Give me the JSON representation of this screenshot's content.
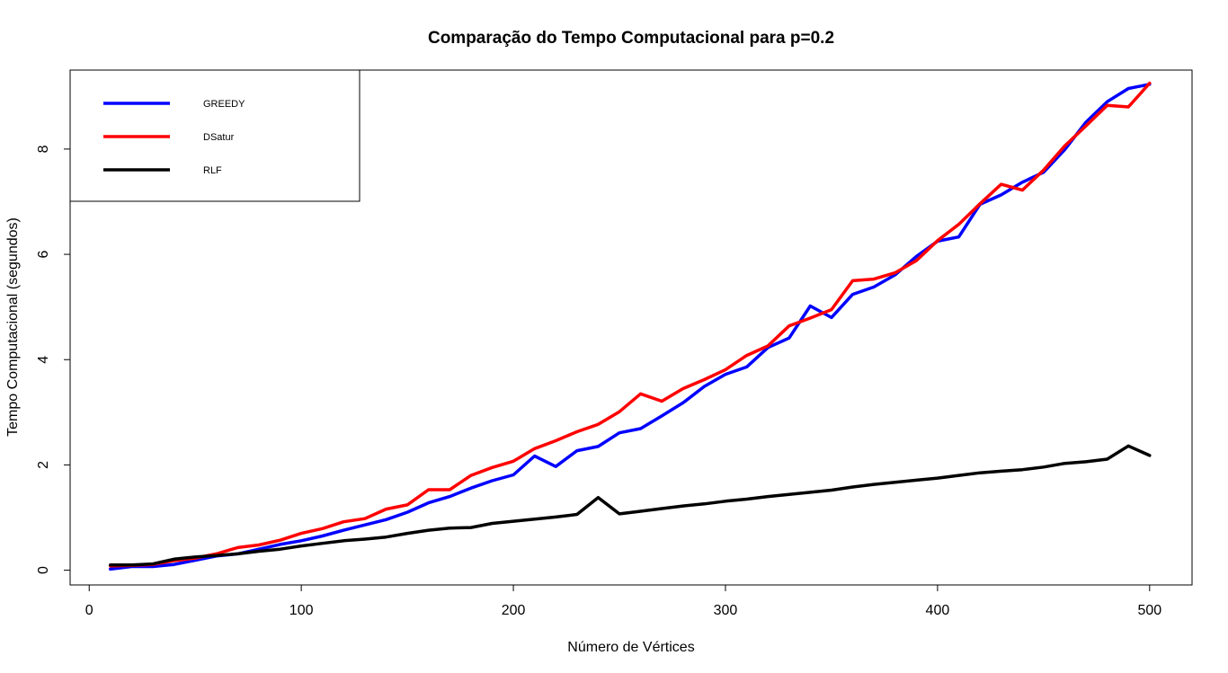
{
  "chart_data": {
    "type": "line",
    "title": "Comparação do Tempo Computacional para p=0.2",
    "xlabel": "Número de Vértices",
    "ylabel": "Tempo Computacional (segundos)",
    "xlim": [
      -9,
      520
    ],
    "ylim": [
      -0.28,
      9.5
    ],
    "xticks": [
      0,
      100,
      200,
      300,
      400,
      500
    ],
    "yticks": [
      0,
      2,
      4,
      6,
      8
    ],
    "legend_position": "top-left",
    "grid": false,
    "x": [
      10,
      20,
      30,
      40,
      50,
      60,
      70,
      80,
      90,
      100,
      110,
      120,
      130,
      140,
      150,
      160,
      170,
      180,
      190,
      200,
      210,
      220,
      230,
      240,
      250,
      260,
      270,
      280,
      290,
      300,
      310,
      320,
      330,
      340,
      350,
      360,
      370,
      380,
      390,
      400,
      410,
      420,
      430,
      440,
      450,
      460,
      470,
      480,
      490,
      500
    ],
    "series": [
      {
        "name": "GREEDY",
        "color": "#0000ff",
        "values": [
          0.02,
          0.07,
          0.07,
          0.11,
          0.19,
          0.27,
          0.31,
          0.4,
          0.49,
          0.56,
          0.65,
          0.76,
          0.86,
          0.96,
          1.1,
          1.28,
          1.4,
          1.56,
          1.7,
          1.81,
          2.17,
          1.97,
          2.27,
          2.35,
          2.61,
          2.69,
          2.93,
          3.18,
          3.49,
          3.72,
          3.86,
          4.23,
          4.41,
          5.02,
          4.8,
          5.24,
          5.38,
          5.61,
          5.96,
          6.25,
          6.33,
          6.95,
          7.13,
          7.37,
          7.56,
          7.99,
          8.51,
          8.9,
          9.15,
          9.23
        ]
      },
      {
        "name": "DSatur",
        "color": "#ff0000",
        "values": [
          0.08,
          0.09,
          0.11,
          0.18,
          0.23,
          0.31,
          0.43,
          0.48,
          0.57,
          0.7,
          0.79,
          0.92,
          0.98,
          1.16,
          1.24,
          1.53,
          1.53,
          1.8,
          1.95,
          2.07,
          2.31,
          2.46,
          2.63,
          2.77,
          3.01,
          3.35,
          3.21,
          3.45,
          3.62,
          3.81,
          4.08,
          4.26,
          4.64,
          4.79,
          4.95,
          5.5,
          5.53,
          5.65,
          5.88,
          6.26,
          6.57,
          6.96,
          7.33,
          7.22,
          7.6,
          8.06,
          8.44,
          8.83,
          8.8,
          9.25
        ]
      },
      {
        "name": "RLF",
        "color": "#000000",
        "values": [
          0.1,
          0.1,
          0.12,
          0.21,
          0.25,
          0.28,
          0.31,
          0.36,
          0.4,
          0.46,
          0.51,
          0.56,
          0.59,
          0.63,
          0.7,
          0.76,
          0.8,
          0.81,
          0.89,
          0.93,
          0.97,
          1.01,
          1.06,
          1.38,
          1.07,
          1.12,
          1.17,
          1.22,
          1.26,
          1.31,
          1.35,
          1.4,
          1.44,
          1.48,
          1.52,
          1.58,
          1.63,
          1.67,
          1.71,
          1.75,
          1.8,
          1.85,
          1.88,
          1.91,
          1.96,
          2.03,
          2.06,
          2.11,
          2.36,
          2.18
        ]
      }
    ]
  }
}
